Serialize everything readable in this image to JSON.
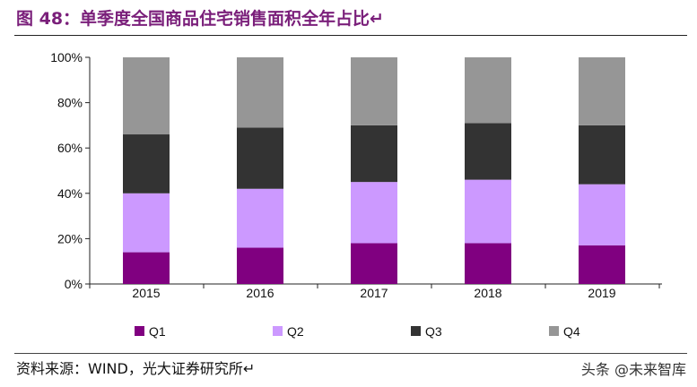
{
  "header": {
    "title": "图 48：单季度全国商品住宅销售面积全年占比↵"
  },
  "footer": {
    "source": "资料来源：WIND，光大证券研究所↵",
    "watermark": "头条 @未来智库"
  },
  "chart_data": {
    "type": "bar",
    "stacked": true,
    "categories": [
      "2015",
      "2016",
      "2017",
      "2018",
      "2019"
    ],
    "series": [
      {
        "name": "Q1",
        "color": "#800080",
        "values": [
          14,
          16,
          18,
          18,
          17
        ]
      },
      {
        "name": "Q2",
        "color": "#cc99ff",
        "values": [
          26,
          26,
          27,
          28,
          27
        ]
      },
      {
        "name": "Q3",
        "color": "#333333",
        "values": [
          26,
          27,
          25,
          25,
          26
        ]
      },
      {
        "name": "Q4",
        "color": "#969696",
        "values": [
          34,
          31,
          30,
          29,
          30
        ]
      }
    ],
    "ylim": [
      0,
      100
    ],
    "yticks": [
      "0%",
      "20%",
      "40%",
      "60%",
      "80%",
      "100%"
    ],
    "legend_position": "bottom"
  }
}
